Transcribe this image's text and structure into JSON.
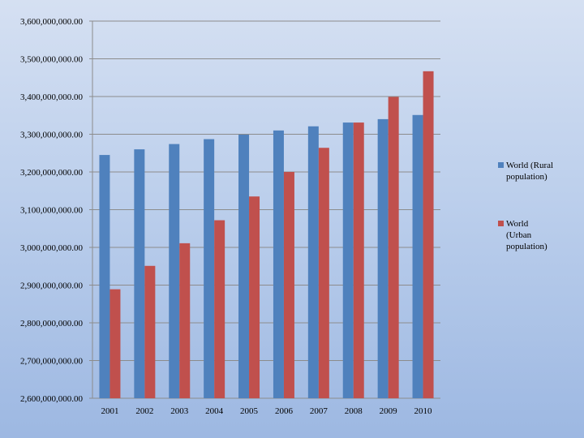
{
  "chart_data": {
    "type": "bar",
    "title": "",
    "xlabel": "",
    "ylabel": "",
    "categories": [
      "2001",
      "2002",
      "2003",
      "2004",
      "2005",
      "2006",
      "2007",
      "2008",
      "2009",
      "2010"
    ],
    "series": [
      {
        "name": "World (Rural population)",
        "color": "#4f81bd",
        "values": [
          3245000000,
          3260000000,
          3274000000,
          3287000000,
          3299000000,
          3310000000,
          3321000000,
          3331000000,
          3340000000,
          3351000000
        ]
      },
      {
        "name": "World (Urban population)",
        "color": "#c0504d",
        "values": [
          2889000000,
          2951000000,
          3011000000,
          3072000000,
          3135000000,
          3200000000,
          3264000000,
          3331000000,
          3399000000,
          3467000000
        ]
      }
    ],
    "ylim": [
      2600000000,
      3600000000
    ],
    "yticks": [
      "2,600,000,000.00",
      "2,700,000,000.00",
      "2,800,000,000.00",
      "2,900,000,000.00",
      "3,000,000,000.00",
      "3,100,000,000.00",
      "3,200,000,000.00",
      "3,300,000,000.00",
      "3,400,000,000.00",
      "3,500,000,000.00",
      "3,600,000,000.00"
    ],
    "grid": true,
    "legend_position": "right"
  },
  "legend": {
    "rural_line1": "World (Rural",
    "rural_line2": "population)",
    "urban_line1": "World",
    "urban_line2": "(Urban",
    "urban_line3": "population)"
  }
}
